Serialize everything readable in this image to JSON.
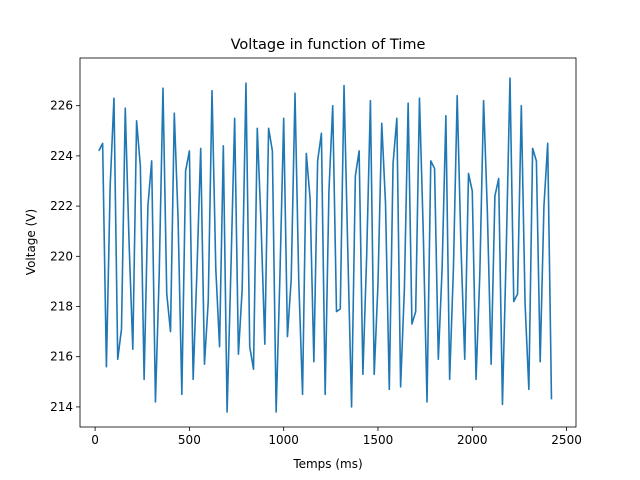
{
  "chart_data": {
    "type": "line",
    "title": "Voltage in function of Time",
    "xlabel": "Temps (ms)",
    "ylabel": "Voltage (V)",
    "xlim": [
      -80,
      2550
    ],
    "ylim": [
      213.2,
      227.9
    ],
    "x_ticks": [
      0,
      500,
      1000,
      1500,
      2000,
      2500
    ],
    "y_ticks": [
      214,
      216,
      218,
      220,
      222,
      224,
      226
    ],
    "grid": false,
    "line_color": "#1f77b4",
    "series": [
      {
        "x": [
          20,
          40,
          60,
          80,
          100,
          120,
          140,
          160,
          180,
          200,
          220,
          240,
          260,
          280,
          300,
          320,
          340,
          360,
          380,
          400,
          420,
          440,
          460,
          480,
          500,
          520,
          540,
          560,
          580,
          600,
          620,
          640,
          660,
          680,
          700,
          720,
          740,
          760,
          780,
          800,
          820,
          840,
          860,
          880,
          900,
          920,
          940,
          960,
          980,
          1000,
          1020,
          1040,
          1060,
          1080,
          1100,
          1120,
          1140,
          1160,
          1180,
          1200,
          1220,
          1240,
          1260,
          1280,
          1300,
          1320,
          1340,
          1360,
          1380,
          1400,
          1420,
          1440,
          1460,
          1480,
          1500,
          1520,
          1540,
          1560,
          1580,
          1600,
          1620,
          1640,
          1660,
          1680,
          1700,
          1720,
          1740,
          1760,
          1780,
          1800,
          1820,
          1840,
          1860,
          1880,
          1900,
          1920,
          1940,
          1960,
          1980,
          2000,
          2020,
          2040,
          2060,
          2080,
          2100,
          2120,
          2140,
          2160,
          2180,
          2200,
          2220,
          2240,
          2260,
          2280,
          2300,
          2320,
          2340,
          2360,
          2380,
          2400,
          2420
        ],
        "y": [
          224.2,
          224.5,
          215.6,
          222.8,
          226.3,
          215.9,
          217.1,
          225.9,
          220.6,
          216.3,
          225.4,
          223.6,
          215.1,
          222.0,
          223.8,
          214.2,
          219.3,
          226.7,
          218.5,
          217.0,
          225.7,
          221.5,
          214.5,
          223.4,
          224.2,
          215.1,
          219.4,
          224.3,
          215.7,
          218.2,
          226.6,
          219.5,
          216.4,
          224.4,
          213.8,
          219.4,
          225.5,
          216.1,
          218.7,
          226.9,
          216.4,
          215.5,
          225.1,
          221.3,
          216.5,
          225.1,
          224.2,
          213.8,
          219.2,
          225.5,
          216.8,
          219.1,
          226.5,
          219.0,
          214.5,
          224.1,
          222.3,
          215.8,
          223.8,
          224.9,
          214.5,
          222.6,
          226.0,
          217.8,
          217.9,
          226.8,
          220.2,
          214.0,
          223.2,
          224.2,
          215.3,
          220.0,
          226.2,
          215.3,
          218.9,
          225.3,
          222.1,
          214.7,
          223.7,
          225.5,
          214.8,
          218.7,
          226.1,
          217.3,
          217.8,
          226.3,
          221.0,
          214.2,
          223.8,
          223.5,
          215.9,
          219.5,
          225.6,
          215.1,
          219.5,
          226.4,
          220.4,
          215.9,
          223.3,
          222.6,
          215.1,
          219.3,
          226.2,
          221.8,
          215.7,
          222.4,
          223.1,
          214.1,
          220.2,
          227.1,
          218.2,
          218.5,
          226.0,
          218.1,
          214.7,
          224.3,
          223.8,
          215.8,
          222.0,
          224.5,
          214.3
        ]
      }
    ]
  }
}
